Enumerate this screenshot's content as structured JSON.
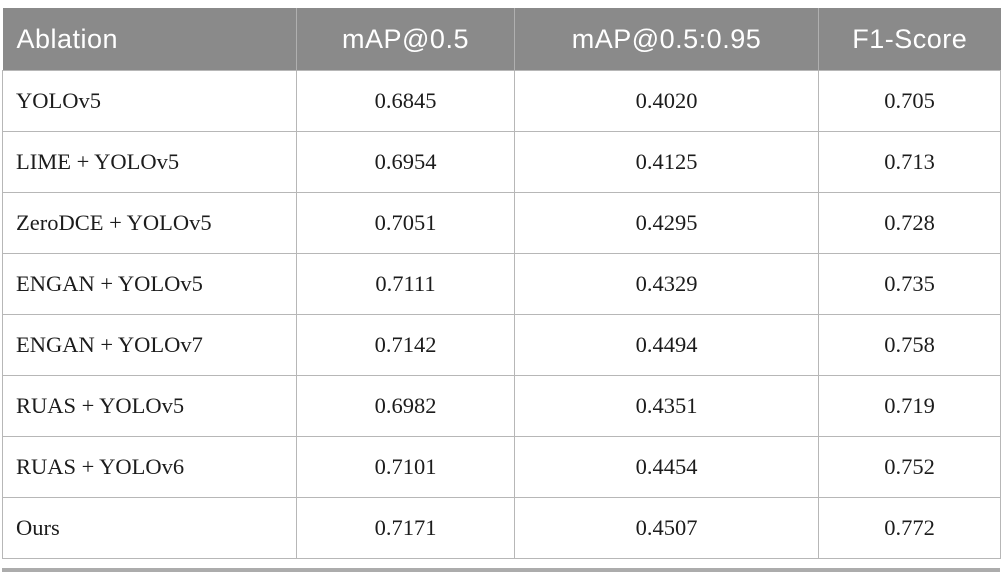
{
  "table": {
    "columns": [
      "Ablation",
      "mAP@0.5",
      "mAP@0.5:0.95",
      "F1-Score"
    ],
    "rows": [
      {
        "ablation": "YOLOv5",
        "map_05": "0.6845",
        "map_05_095": "0.4020",
        "f1_score": "0.705"
      },
      {
        "ablation": "LIME + YOLOv5",
        "map_05": "0.6954",
        "map_05_095": "0.4125",
        "f1_score": "0.713"
      },
      {
        "ablation": "ZeroDCE + YOLOv5",
        "map_05": "0.7051",
        "map_05_095": "0.4295",
        "f1_score": "0.728"
      },
      {
        "ablation": "ENGAN + YOLOv5",
        "map_05": "0.7111",
        "map_05_095": "0.4329",
        "f1_score": "0.735"
      },
      {
        "ablation": "ENGAN + YOLOv7",
        "map_05": "0.7142",
        "map_05_095": "0.4494",
        "f1_score": "0.758"
      },
      {
        "ablation": "RUAS + YOLOv5",
        "map_05": "0.6982",
        "map_05_095": "0.4351",
        "f1_score": "0.719"
      },
      {
        "ablation": "RUAS + YOLOv6",
        "map_05": "0.7101",
        "map_05_095": "0.4454",
        "f1_score": "0.752"
      },
      {
        "ablation": "Ours",
        "map_05": "0.7171",
        "map_05_095": "0.4507",
        "f1_score": "0.772"
      }
    ]
  },
  "colors": {
    "header_background": "#8a8a8a",
    "header_text": "#ffffff",
    "grid_line": "#b7b7b7",
    "body_text": "#1c1c1c",
    "bottom_rule": "#acacac"
  }
}
